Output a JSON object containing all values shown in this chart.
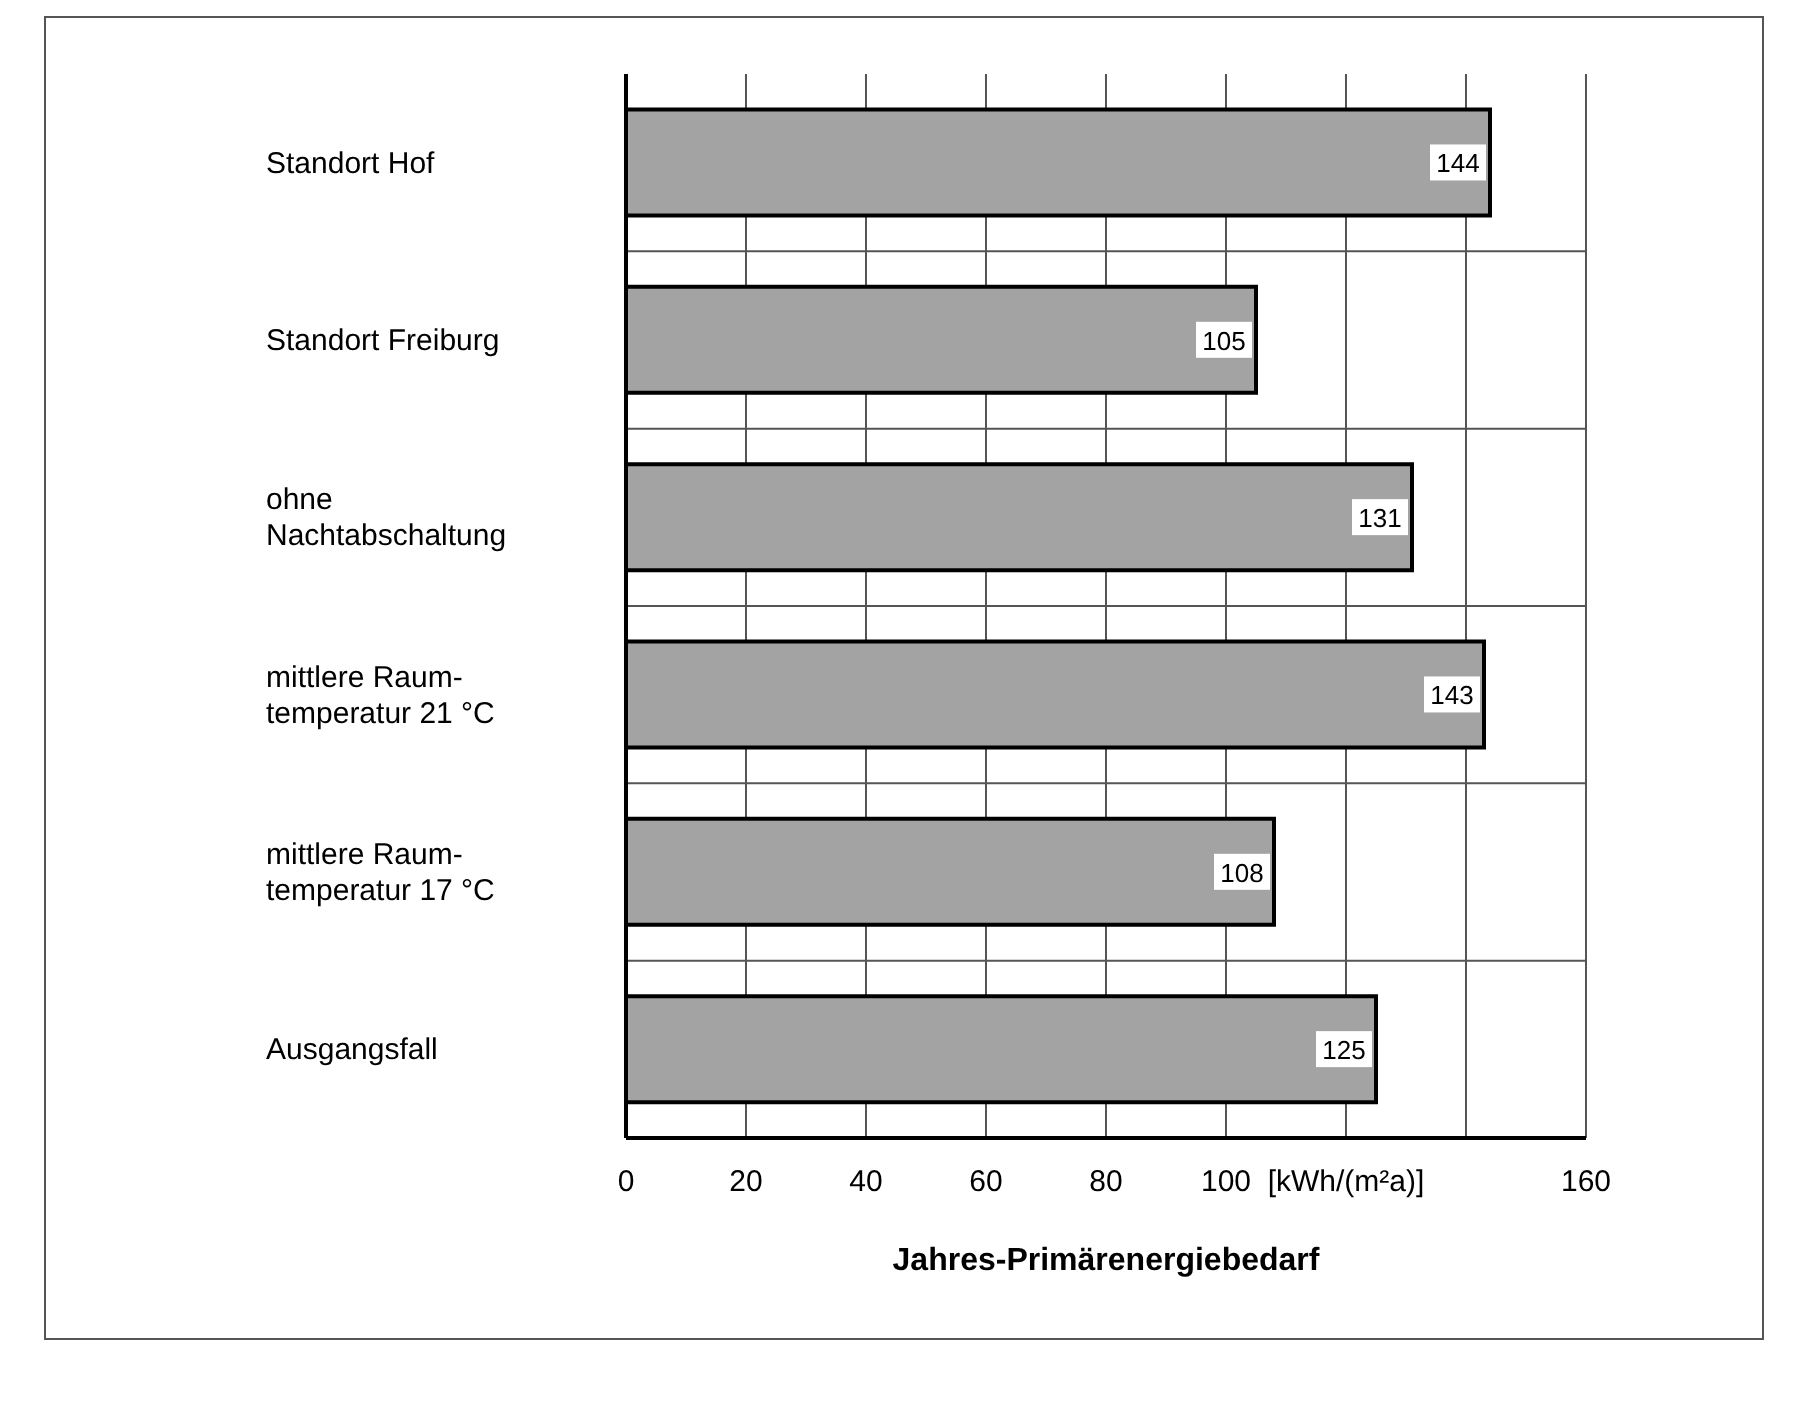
{
  "chart_data": {
    "type": "bar",
    "orientation": "horizontal",
    "xlabel": "Jahres-Primärenergiebedarf",
    "categories": [
      "Standort Hof",
      "Standort Freiburg",
      "ohne\nNachtabschaltung",
      "mittlere Raum-\ntemperatur 21 °C",
      "mittlere Raum-\ntemperatur 17 °C",
      "Ausgangsfall"
    ],
    "values": [
      144,
      105,
      131,
      143,
      108,
      125
    ],
    "color": "#a3a3a3",
    "data_labels": true,
    "xlim": [
      0,
      160
    ],
    "xticks": [
      0,
      20,
      40,
      60,
      80,
      100,
      {
        "value": 120,
        "label": "[kWh/(m²a)]"
      },
      {
        "value": 140,
        "label": null
      },
      160
    ],
    "grid": true
  }
}
